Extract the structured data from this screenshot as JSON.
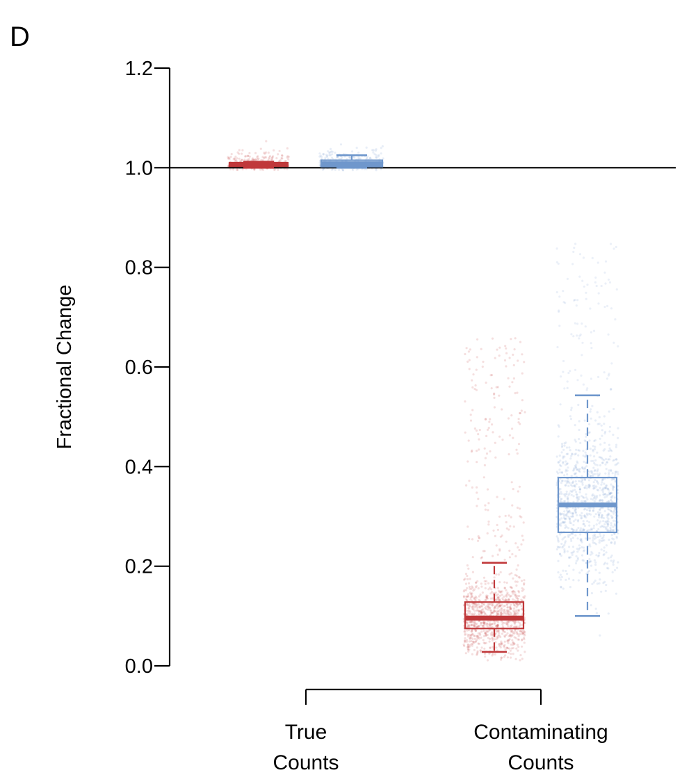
{
  "panel_label": "D",
  "colors": {
    "red": "#c0383a",
    "blue": "#6f97cc",
    "axis": "#000000"
  },
  "chart_data": {
    "type": "box",
    "title": "",
    "ylabel": "Fractional Change",
    "xlabel": "",
    "ylim": [
      0.0,
      1.2
    ],
    "yticks": [
      "0.0",
      "0.2",
      "0.4",
      "0.6",
      "0.8",
      "1.0",
      "1.2"
    ],
    "reference_line": 1.0,
    "groups": [
      {
        "label_line1": "True",
        "label_line2": "Counts"
      },
      {
        "label_line1": "Contaminating",
        "label_line2": "Counts"
      }
    ],
    "boxes": [
      {
        "group": 0,
        "color": "red",
        "whisker_low": 1.0,
        "q1": 1.003,
        "median": 1.007,
        "q3": 1.01,
        "whisker_high": 1.012
      },
      {
        "group": 0,
        "color": "blue",
        "whisker_low": 1.0,
        "q1": 1.002,
        "median": 1.008,
        "q3": 1.015,
        "whisker_high": 1.025
      },
      {
        "group": 1,
        "color": "red",
        "whisker_low": 0.028,
        "q1": 0.075,
        "median": 0.096,
        "q3": 0.128,
        "whisker_high": 0.207
      },
      {
        "group": 1,
        "color": "blue",
        "whisker_low": 0.1,
        "q1": 0.268,
        "median": 0.323,
        "q3": 0.378,
        "whisker_high": 0.543
      }
    ]
  }
}
